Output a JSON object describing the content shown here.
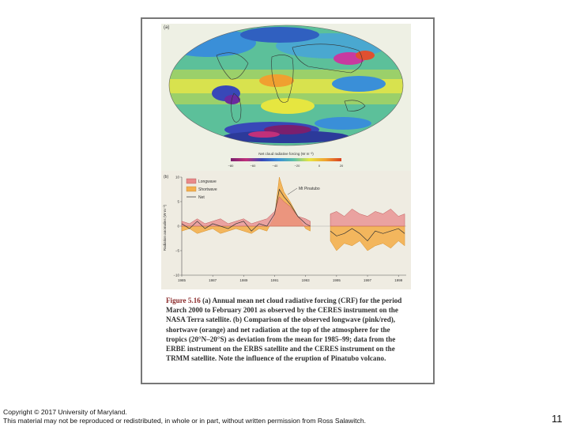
{
  "figure": {
    "panel_a": {
      "tag": "(a)",
      "colorbar_title": "Net cloud radiative forcing (W m⁻²)",
      "colorbar_ticks": [
        "−80",
        "−60",
        "−40",
        "−20",
        "0",
        "20"
      ],
      "colorbar_colors": [
        "#7a1f6e",
        "#c0307a",
        "#3848b8",
        "#3a8fd8",
        "#5cc0a8",
        "#e6e640",
        "#f0a030",
        "#d84020"
      ]
    },
    "panel_b": {
      "tag": "(b)",
      "ylabel": "Radiation anomalies (W m⁻²)",
      "annotation": "Mt Pinatubo",
      "legend": [
        {
          "label": "Longwave",
          "color": "#e88a8a"
        },
        {
          "label": "Shortwave",
          "color": "#f3b04f"
        },
        {
          "label": "Net",
          "color": "#444444"
        }
      ]
    },
    "caption": {
      "label": "Figure 5.16",
      "text": "(a) Annual mean net cloud radiative forcing (CRF) for the period March 2000 to February 2001 as observed by the CERES instrument on the NASA Terra satellite. (b) Comparison of the observed longwave (pink/red), shortwave (orange) and net radiation at the top of the atmosphere for the tropics (20°N–20°S) as deviation from the mean for 1985–99; data from the ERBE instrument on the ERBS satellite and the CERES instrument on the TRMM satellite. Note the influence of the eruption of Pinatubo volcano."
    }
  },
  "chart_data": {
    "type": "area",
    "title": "",
    "xlabel": "",
    "ylabel": "Radiation anomalies (W m⁻²)",
    "x_ticks": [
      "1985",
      "1987",
      "1989",
      "1991",
      "1993",
      "1995",
      "1997",
      "1999"
    ],
    "y_ticks": [
      "10",
      "5",
      "0",
      "−5",
      "−10"
    ],
    "xlim": [
      1985,
      1999.5
    ],
    "ylim": [
      -10,
      10
    ],
    "gap": [
      1993.3,
      1994.6
    ],
    "x": [
      1985,
      1985.5,
      1986,
      1986.5,
      1987,
      1987.5,
      1988,
      1988.5,
      1989,
      1989.5,
      1990,
      1990.5,
      1991,
      1991.3,
      1991.6,
      1992,
      1992.5,
      1993,
      1993.3,
      1994.6,
      1995,
      1995.5,
      1996,
      1996.5,
      1997,
      1997.5,
      1998,
      1998.5,
      1999,
      1999.4
    ],
    "series": [
      {
        "name": "Longwave",
        "values": [
          1,
          0.5,
          1.5,
          0.5,
          1,
          1.5,
          0.5,
          1,
          1.5,
          0.5,
          1,
          1.5,
          3,
          6,
          5,
          4,
          2,
          1.5,
          1,
          2.5,
          3,
          2,
          3.5,
          2.5,
          2,
          3,
          2.5,
          3.5,
          2,
          2.5
        ]
      },
      {
        "name": "Shortwave",
        "values": [
          -1,
          -0.5,
          -1.5,
          -1,
          -0.5,
          -1.5,
          -1,
          -0.5,
          -1,
          -1.5,
          -0.5,
          -1,
          2,
          10,
          7,
          5,
          2,
          -0.5,
          -1,
          -3,
          -5,
          -3.5,
          -4,
          -3,
          -5,
          -4,
          -3.5,
          -4.5,
          -3,
          -4
        ]
      },
      {
        "name": "Net",
        "values": [
          0.5,
          -0.5,
          1,
          -0.5,
          0.5,
          0,
          -0.5,
          0.5,
          1,
          -1,
          0.5,
          0,
          2.5,
          7.5,
          6,
          4.5,
          2,
          0.5,
          0,
          -1,
          -2,
          -1.5,
          -0.5,
          -1.5,
          -3,
          -1,
          -1.5,
          -1,
          -0.5,
          -1.5
        ]
      }
    ]
  },
  "footer": {
    "copyright_line1": "Copyright © 2017 University of Maryland.",
    "copyright_line2": "This material may not be reproduced or redistributed, in whole or in part, without written permission from Ross Salawitch.",
    "page_number": "11"
  }
}
